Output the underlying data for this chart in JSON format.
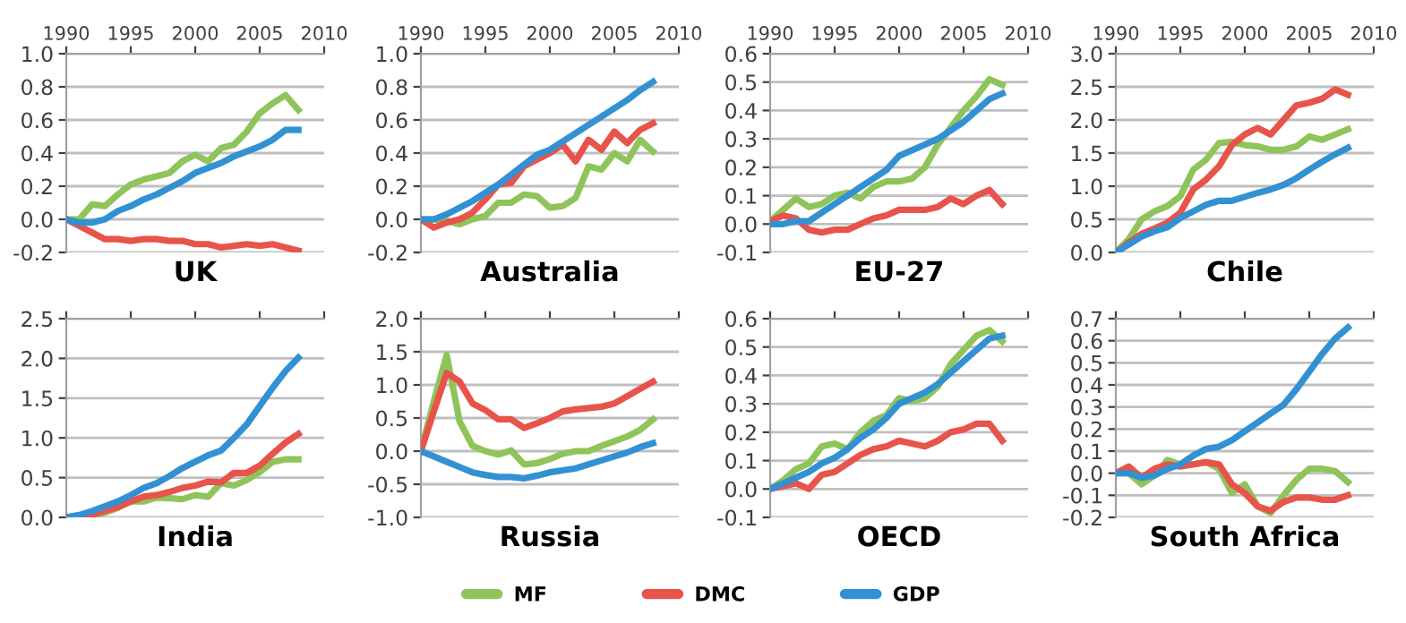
{
  "chart_data": [
    {
      "type": "line",
      "title": "UK",
      "x": [
        1990,
        1991,
        1992,
        1993,
        1994,
        1995,
        1996,
        1997,
        1998,
        1999,
        2000,
        2001,
        2002,
        2003,
        2004,
        2005,
        2006,
        2007,
        2008
      ],
      "xlim": [
        1990,
        2010
      ],
      "xticks": [
        1990,
        1995,
        2000,
        2005,
        2010
      ],
      "ylim": [
        -0.2,
        1.0
      ],
      "yticks": [
        {
          "value": -0.2,
          "label": "-0.2"
        },
        {
          "value": 0,
          "label": "0.0"
        },
        0.2,
        0.4,
        0.6,
        0.8,
        {
          "value": 1.0,
          "label": "1.0"
        }
      ],
      "grid": "y",
      "legend": "bottom",
      "marker": "none",
      "line_style": "solid",
      "series": [
        {
          "name": "MF",
          "color": "#8fc45a",
          "values": [
            0,
            0.0,
            0.09,
            0.08,
            0.15,
            0.21,
            0.24,
            0.26,
            0.28,
            0.35,
            0.39,
            0.35,
            0.43,
            0.45,
            0.53,
            0.64,
            0.7,
            0.75,
            0.66
          ]
        },
        {
          "name": "DMC",
          "color": "#e8534a",
          "values": [
            0,
            -0.04,
            -0.08,
            -0.12,
            -0.12,
            -0.13,
            -0.12,
            -0.12,
            -0.13,
            -0.13,
            -0.15,
            -0.15,
            -0.17,
            -0.16,
            -0.15,
            -0.16,
            -0.15,
            -0.17,
            -0.19
          ]
        },
        {
          "name": "GDP",
          "color": "#3291d2",
          "values": [
            0,
            -0.02,
            -0.02,
            0.0,
            0.05,
            0.08,
            0.12,
            0.15,
            0.19,
            0.23,
            0.28,
            0.31,
            0.34,
            0.38,
            0.41,
            0.44,
            0.48,
            0.54,
            0.54
          ]
        }
      ]
    },
    {
      "type": "line",
      "title": "Australia",
      "x": [
        1990,
        1991,
        1992,
        1993,
        1994,
        1995,
        1996,
        1997,
        1998,
        1999,
        2000,
        2001,
        2002,
        2003,
        2004,
        2005,
        2006,
        2007,
        2008
      ],
      "xlim": [
        1990,
        2010
      ],
      "xticks": [
        1990,
        1995,
        2000,
        2005,
        2010
      ],
      "ylim": [
        -0.2,
        1.0
      ],
      "yticks": [
        {
          "value": -0.2,
          "label": "-0.2"
        },
        {
          "value": 0,
          "label": "0.0"
        },
        0.2,
        0.4,
        0.6,
        0.8,
        {
          "value": 1.0,
          "label": "1.0"
        }
      ],
      "grid": "y",
      "marker": "none",
      "line_style": "solid",
      "series": [
        {
          "name": "MF",
          "color": "#8fc45a",
          "values": [
            0,
            0.0,
            -0.01,
            -0.03,
            0.0,
            0.02,
            0.1,
            0.1,
            0.15,
            0.14,
            0.07,
            0.08,
            0.13,
            0.32,
            0.3,
            0.4,
            0.35,
            0.48,
            0.41
          ]
        },
        {
          "name": "DMC",
          "color": "#e8534a",
          "values": [
            0,
            -0.05,
            -0.02,
            0.0,
            0.04,
            0.12,
            0.21,
            0.22,
            0.32,
            0.36,
            0.4,
            0.45,
            0.35,
            0.48,
            0.42,
            0.53,
            0.46,
            0.54,
            0.58
          ]
        },
        {
          "name": "GDP",
          "color": "#3291d2",
          "values": [
            0,
            0.0,
            0.03,
            0.07,
            0.11,
            0.16,
            0.21,
            0.27,
            0.33,
            0.39,
            0.42,
            0.47,
            0.52,
            0.57,
            0.62,
            0.67,
            0.72,
            0.78,
            0.83
          ]
        }
      ]
    },
    {
      "type": "line",
      "title": "EU-27",
      "x": [
        1990,
        1991,
        1992,
        1993,
        1994,
        1995,
        1996,
        1997,
        1998,
        1999,
        2000,
        2001,
        2002,
        2003,
        2004,
        2005,
        2006,
        2007,
        2008
      ],
      "xlim": [
        1990,
        2010
      ],
      "xticks": [
        1990,
        1995,
        2000,
        2005,
        2010
      ],
      "ylim": [
        -0.1,
        0.6
      ],
      "yticks": [
        {
          "value": -0.1,
          "label": "-0.1"
        },
        {
          "value": 0,
          "label": "0.0"
        },
        0.1,
        0.2,
        0.3,
        0.4,
        0.5,
        0.6
      ],
      "grid": "y",
      "marker": "none",
      "line_style": "solid",
      "series": [
        {
          "name": "MF",
          "color": "#8fc45a",
          "values": [
            0.01,
            0.05,
            0.09,
            0.06,
            0.07,
            0.1,
            0.11,
            0.09,
            0.13,
            0.15,
            0.15,
            0.16,
            0.2,
            0.28,
            0.34,
            0.4,
            0.45,
            0.51,
            0.49
          ]
        },
        {
          "name": "DMC",
          "color": "#e8534a",
          "values": [
            0.01,
            0.03,
            0.02,
            -0.02,
            -0.03,
            -0.02,
            -0.02,
            0.0,
            0.02,
            0.03,
            0.05,
            0.05,
            0.05,
            0.06,
            0.09,
            0.07,
            0.1,
            0.12,
            0.07
          ]
        },
        {
          "name": "GDP",
          "color": "#3291d2",
          "values": [
            0.0,
            0.0,
            0.01,
            0.01,
            0.04,
            0.07,
            0.1,
            0.13,
            0.16,
            0.19,
            0.24,
            0.26,
            0.28,
            0.3,
            0.33,
            0.36,
            0.4,
            0.44,
            0.46
          ]
        }
      ]
    },
    {
      "type": "line",
      "title": "Chile",
      "x": [
        1990,
        1991,
        1992,
        1993,
        1994,
        1995,
        1996,
        1997,
        1998,
        1999,
        2000,
        2001,
        2002,
        2003,
        2004,
        2005,
        2006,
        2007,
        2008
      ],
      "xlim": [
        1990,
        2010
      ],
      "xticks": [
        1990,
        1995,
        2000,
        2005,
        2010
      ],
      "ylim": [
        0,
        3.0
      ],
      "yticks": [
        {
          "value": 0,
          "label": "0.0"
        },
        0.5,
        {
          "value": 1.0,
          "label": "1.0"
        },
        1.5,
        {
          "value": 2.0,
          "label": "2.0"
        },
        2.5,
        {
          "value": 3.0,
          "label": "3.0"
        }
      ],
      "grid": "y",
      "marker": "none",
      "line_style": "solid",
      "series": [
        {
          "name": "MF",
          "color": "#8fc45a",
          "values": [
            0,
            0.2,
            0.5,
            0.62,
            0.7,
            0.85,
            1.25,
            1.4,
            1.65,
            1.67,
            1.62,
            1.6,
            1.55,
            1.55,
            1.6,
            1.75,
            1.7,
            1.78,
            1.86
          ]
        },
        {
          "name": "DMC",
          "color": "#e8534a",
          "values": [
            0,
            0.15,
            0.28,
            0.36,
            0.45,
            0.6,
            0.95,
            1.1,
            1.3,
            1.62,
            1.78,
            1.88,
            1.78,
            2.0,
            2.22,
            2.26,
            2.32,
            2.46,
            2.38
          ]
        },
        {
          "name": "GDP",
          "color": "#3291d2",
          "values": [
            0,
            0.12,
            0.24,
            0.32,
            0.38,
            0.52,
            0.62,
            0.72,
            0.78,
            0.78,
            0.84,
            0.9,
            0.95,
            1.02,
            1.12,
            1.25,
            1.37,
            1.48,
            1.58
          ]
        }
      ]
    },
    {
      "type": "line",
      "title": "India",
      "x": [
        1990,
        1991,
        1992,
        1993,
        1994,
        1995,
        1996,
        1997,
        1998,
        1999,
        2000,
        2001,
        2002,
        2003,
        2004,
        2005,
        2006,
        2007,
        2008
      ],
      "xlim": [
        1990,
        2010
      ],
      "xticks": [
        1990,
        1995,
        2000,
        2005,
        2010
      ],
      "tick_labels": "y",
      "ylim": [
        0,
        2.5
      ],
      "yticks": [
        {
          "value": 0,
          "label": "0.0"
        },
        0.5,
        {
          "value": 1.0,
          "label": "1.0"
        },
        1.5,
        {
          "value": 2.0,
          "label": "2.0"
        },
        2.5
      ],
      "grid": "y",
      "marker": "none",
      "line_style": "solid",
      "series": [
        {
          "name": "MF",
          "color": "#8fc45a",
          "values": [
            0,
            0.0,
            0.02,
            0.06,
            0.12,
            0.2,
            0.2,
            0.25,
            0.24,
            0.23,
            0.28,
            0.26,
            0.43,
            0.4,
            0.47,
            0.57,
            0.7,
            0.73,
            0.73
          ]
        },
        {
          "name": "DMC",
          "color": "#e8534a",
          "values": [
            0,
            0.01,
            0.03,
            0.08,
            0.13,
            0.2,
            0.26,
            0.28,
            0.32,
            0.37,
            0.4,
            0.45,
            0.44,
            0.56,
            0.56,
            0.65,
            0.8,
            0.94,
            1.05
          ]
        },
        {
          "name": "GDP",
          "color": "#3291d2",
          "values": [
            0,
            0.03,
            0.08,
            0.14,
            0.2,
            0.28,
            0.37,
            0.43,
            0.52,
            0.62,
            0.7,
            0.78,
            0.84,
            1.0,
            1.17,
            1.4,
            1.63,
            1.84,
            2.01
          ]
        }
      ]
    },
    {
      "type": "line",
      "title": "Russia",
      "x": [
        1990,
        1991,
        1992,
        1993,
        1994,
        1995,
        1996,
        1997,
        1998,
        1999,
        2000,
        2001,
        2002,
        2003,
        2004,
        2005,
        2006,
        2007,
        2008
      ],
      "xlim": [
        1990,
        2010
      ],
      "xticks": [
        1990,
        1995,
        2000,
        2005,
        2010
      ],
      "tick_labels": "y",
      "ylim": [
        -1.0,
        2.0
      ],
      "yticks": [
        {
          "value": -1.0,
          "label": "-1.0"
        },
        {
          "value": -0.5,
          "label": "-0.5"
        },
        {
          "value": 0,
          "label": "0.0"
        },
        0.5,
        {
          "value": 1.0,
          "label": "1.0"
        },
        1.5,
        {
          "value": 2.0,
          "label": "2.0"
        }
      ],
      "grid": "y",
      "marker": "none",
      "line_style": "solid",
      "series": [
        {
          "name": "MF",
          "color": "#8fc45a",
          "values": [
            0,
            0.75,
            1.45,
            0.45,
            0.08,
            0.0,
            -0.05,
            0.01,
            -0.2,
            -0.18,
            -0.12,
            -0.04,
            0.0,
            0.0,
            0.08,
            0.15,
            0.22,
            0.32,
            0.48
          ]
        },
        {
          "name": "DMC",
          "color": "#e8534a",
          "values": [
            0,
            0.6,
            1.18,
            1.05,
            0.72,
            0.62,
            0.48,
            0.48,
            0.35,
            0.42,
            0.5,
            0.6,
            0.63,
            0.65,
            0.67,
            0.72,
            0.83,
            0.94,
            1.05
          ]
        },
        {
          "name": "GDP",
          "color": "#3291d2",
          "values": [
            0,
            -0.08,
            -0.16,
            -0.24,
            -0.32,
            -0.36,
            -0.39,
            -0.39,
            -0.41,
            -0.37,
            -0.32,
            -0.29,
            -0.26,
            -0.2,
            -0.14,
            -0.08,
            -0.02,
            0.06,
            0.12
          ]
        }
      ]
    },
    {
      "type": "line",
      "title": "OECD",
      "x": [
        1990,
        1991,
        1992,
        1993,
        1994,
        1995,
        1996,
        1997,
        1998,
        1999,
        2000,
        2001,
        2002,
        2003,
        2004,
        2005,
        2006,
        2007,
        2008
      ],
      "xlim": [
        1990,
        2010
      ],
      "xticks": [
        1990,
        1995,
        2000,
        2005,
        2010
      ],
      "tick_labels": "y",
      "ylim": [
        -0.1,
        0.6
      ],
      "yticks": [
        {
          "value": -0.1,
          "label": "-0.1"
        },
        {
          "value": 0,
          "label": "0.0"
        },
        0.1,
        0.2,
        0.3,
        0.4,
        0.5,
        0.6
      ],
      "grid": "y",
      "marker": "none",
      "line_style": "solid",
      "series": [
        {
          "name": "MF",
          "color": "#8fc45a",
          "values": [
            0,
            0.03,
            0.07,
            0.09,
            0.15,
            0.16,
            0.14,
            0.2,
            0.24,
            0.26,
            0.32,
            0.31,
            0.32,
            0.36,
            0.44,
            0.49,
            0.54,
            0.56,
            0.52
          ]
        },
        {
          "name": "DMC",
          "color": "#e8534a",
          "values": [
            0,
            0.01,
            0.02,
            0.0,
            0.05,
            0.06,
            0.09,
            0.12,
            0.14,
            0.15,
            0.17,
            0.16,
            0.15,
            0.17,
            0.2,
            0.21,
            0.23,
            0.23,
            0.17
          ]
        },
        {
          "name": "GDP",
          "color": "#3291d2",
          "values": [
            0,
            0.02,
            0.04,
            0.06,
            0.09,
            0.11,
            0.14,
            0.18,
            0.21,
            0.25,
            0.3,
            0.32,
            0.34,
            0.37,
            0.41,
            0.45,
            0.49,
            0.53,
            0.54
          ]
        }
      ]
    },
    {
      "type": "line",
      "title": "South Africa",
      "x": [
        1990,
        1991,
        1992,
        1993,
        1994,
        1995,
        1996,
        1997,
        1998,
        1999,
        2000,
        2001,
        2002,
        2003,
        2004,
        2005,
        2006,
        2007,
        2008
      ],
      "xlim": [
        1990,
        2010
      ],
      "xticks": [
        1990,
        1995,
        2000,
        2005,
        2010
      ],
      "tick_labels": "y",
      "ylim": [
        -0.2,
        0.7
      ],
      "yticks": [
        {
          "value": -0.2,
          "label": "-0.2"
        },
        {
          "value": -0.1,
          "label": "-0.1"
        },
        {
          "value": 0,
          "label": "0.0"
        },
        0.1,
        0.2,
        0.3,
        0.4,
        0.5,
        0.6,
        0.7
      ],
      "grid": "y",
      "marker": "none",
      "line_style": "solid",
      "series": [
        {
          "name": "MF",
          "color": "#8fc45a",
          "values": [
            0,
            0.0,
            -0.05,
            -0.01,
            0.06,
            0.04,
            0.04,
            0.05,
            0.02,
            -0.09,
            -0.05,
            -0.15,
            -0.18,
            -0.1,
            -0.03,
            0.02,
            0.02,
            0.01,
            -0.04
          ]
        },
        {
          "name": "DMC",
          "color": "#e8534a",
          "values": [
            0,
            0.03,
            -0.02,
            0.02,
            0.04,
            0.03,
            0.04,
            0.05,
            0.04,
            -0.05,
            -0.09,
            -0.15,
            -0.17,
            -0.13,
            -0.11,
            -0.11,
            -0.12,
            -0.12,
            -0.1
          ]
        },
        {
          "name": "GDP",
          "color": "#3291d2",
          "values": [
            0,
            0.0,
            -0.02,
            -0.01,
            0.02,
            0.04,
            0.08,
            0.11,
            0.12,
            0.15,
            0.19,
            0.23,
            0.27,
            0.31,
            0.38,
            0.46,
            0.54,
            0.61,
            0.66
          ]
        }
      ]
    }
  ]
}
